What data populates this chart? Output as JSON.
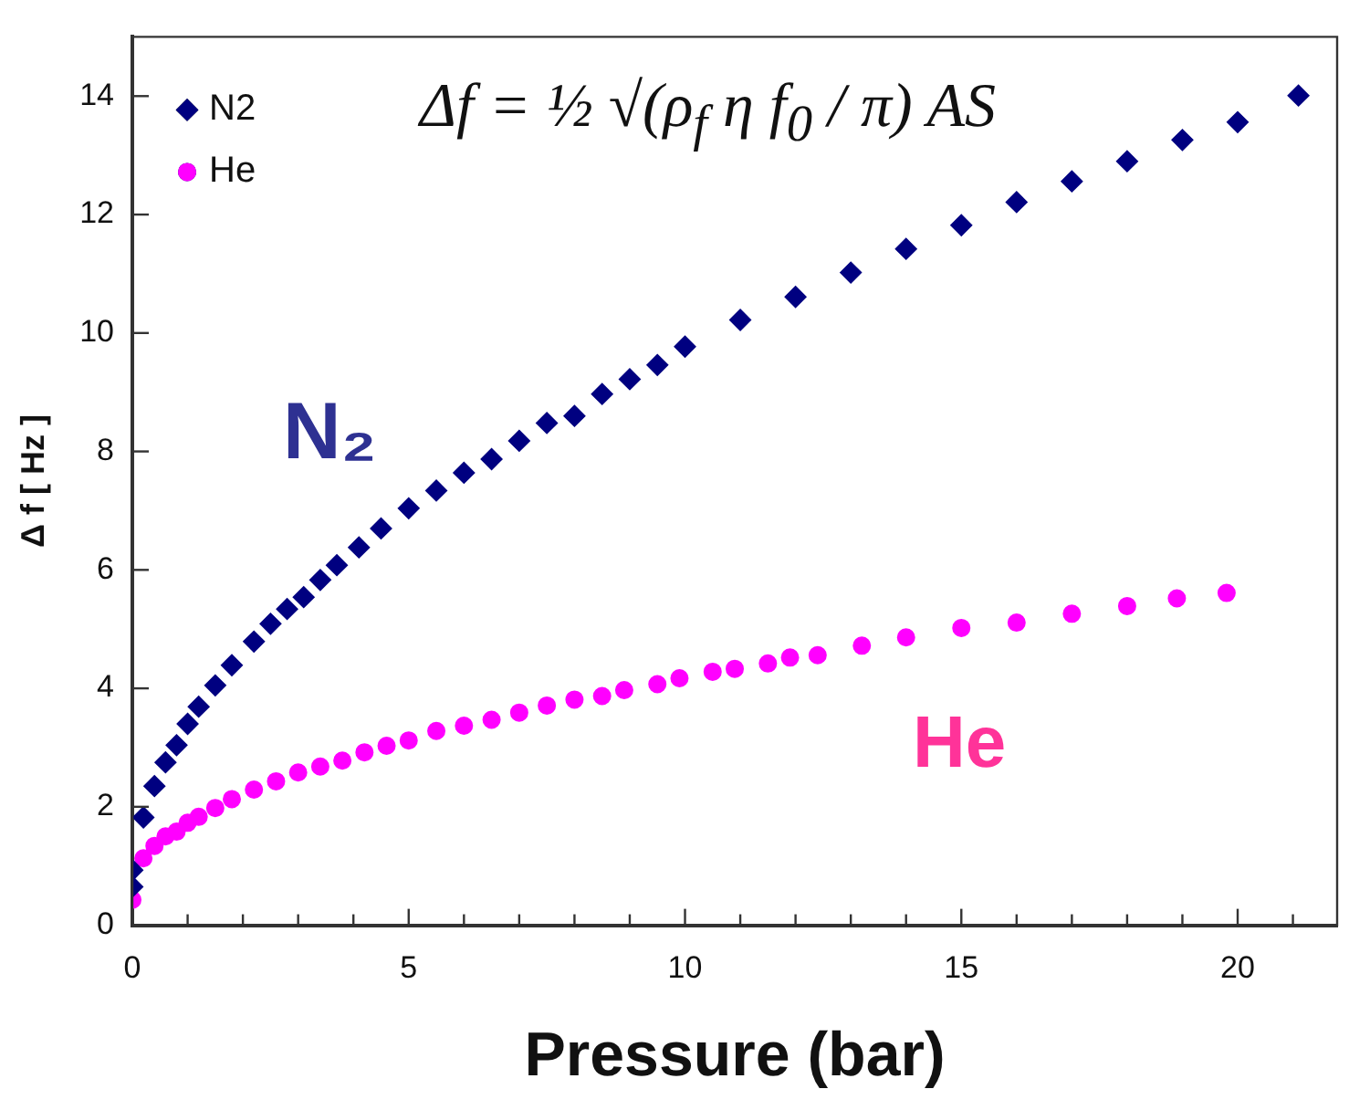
{
  "chart_data": {
    "type": "scatter",
    "xlabel": "Pressure (bar)",
    "ylabel": "Δ f [ Hz ]",
    "xlim": [
      0,
      21.8
    ],
    "ylim": [
      0,
      15
    ],
    "xticks": [
      0,
      {
        "value": 1,
        "label": null
      },
      {
        "value": 2,
        "label": null
      },
      {
        "value": 3,
        "label": null
      },
      {
        "value": 4,
        "label": null
      },
      5,
      {
        "value": 6,
        "label": null
      },
      {
        "value": 7,
        "label": null
      },
      {
        "value": 8,
        "label": null
      },
      {
        "value": 9,
        "label": null
      },
      10,
      {
        "value": 11,
        "label": null
      },
      {
        "value": 12,
        "label": null
      },
      {
        "value": 13,
        "label": null
      },
      {
        "value": 14,
        "label": null
      },
      15,
      {
        "value": 16,
        "label": null
      },
      {
        "value": 17,
        "label": null
      },
      {
        "value": 18,
        "label": null
      },
      {
        "value": 19,
        "label": null
      },
      20,
      {
        "value": 21,
        "label": null
      }
    ],
    "yticks": [
      0,
      2,
      4,
      6,
      8,
      10,
      12,
      14
    ],
    "grid": false,
    "legend": "top left",
    "annotations": [
      "Δf = ½ √(ρ$_{f}$ η f$_{0}$ / π) AS",
      "N₂",
      "He"
    ],
    "series": [
      {
        "name": "N2",
        "color": "#000080",
        "marker": "diamond",
        "x": [
          0,
          0,
          0.2,
          0.4,
          0.6,
          0.8,
          1,
          1.2,
          1.5,
          1.8,
          2.2,
          2.5,
          2.8,
          3.1,
          3.4,
          3.7,
          4.1,
          4.5,
          5,
          5.5,
          6,
          6.5,
          7,
          7.5,
          8,
          8.5,
          9,
          9.5,
          10,
          11,
          12,
          13,
          14,
          15,
          16,
          17,
          18,
          19,
          20,
          21.1
        ],
        "values": [
          0.93,
          0.65,
          1.82,
          2.35,
          2.75,
          3.04,
          3.4,
          3.69,
          4.05,
          4.39,
          4.79,
          5.09,
          5.34,
          5.54,
          5.83,
          6.08,
          6.38,
          6.7,
          7.04,
          7.34,
          7.64,
          7.87,
          8.18,
          8.48,
          8.6,
          8.97,
          9.22,
          9.46,
          9.77,
          10.22,
          10.61,
          11.02,
          11.42,
          11.82,
          12.21,
          12.56,
          12.9,
          13.26,
          13.56,
          14.01
        ]
      },
      {
        "name": "He",
        "color": "#ff00ff",
        "marker": "circle",
        "x": [
          0,
          0.2,
          0.4,
          0.6,
          0.8,
          1,
          1.2,
          1.5,
          1.8,
          2.2,
          2.6,
          3,
          3.4,
          3.8,
          4.2,
          4.6,
          5,
          5.5,
          6,
          6.5,
          7,
          7.5,
          8,
          8.5,
          8.9,
          9.5,
          9.9,
          10.5,
          10.9,
          11.5,
          11.9,
          12.4,
          13.2,
          14,
          15,
          16,
          17,
          18,
          18.9,
          19.8
        ],
        "values": [
          0.43,
          1.13,
          1.34,
          1.5,
          1.58,
          1.73,
          1.83,
          1.98,
          2.13,
          2.29,
          2.43,
          2.58,
          2.68,
          2.78,
          2.92,
          3.03,
          3.12,
          3.28,
          3.37,
          3.47,
          3.59,
          3.71,
          3.81,
          3.87,
          3.97,
          4.07,
          4.17,
          4.28,
          4.33,
          4.42,
          4.52,
          4.56,
          4.72,
          4.86,
          5.02,
          5.11,
          5.26,
          5.39,
          5.52,
          5.61
        ]
      }
    ]
  }
}
